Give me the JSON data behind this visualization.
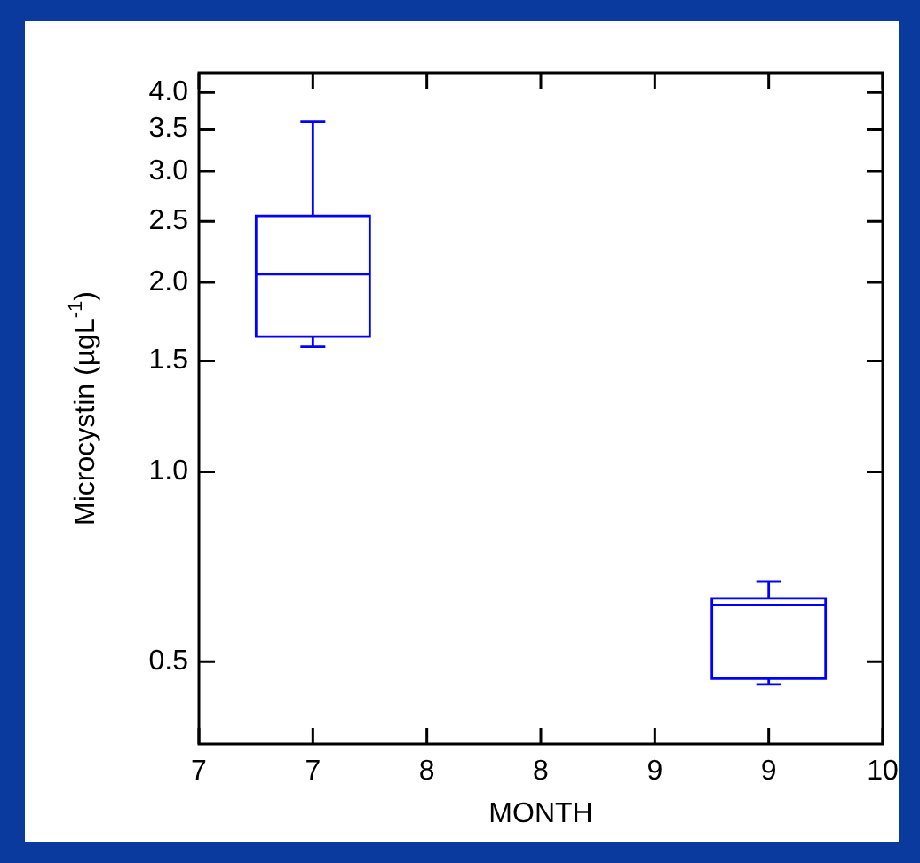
{
  "chart_data": {
    "type": "box",
    "xlabel": "MONTH",
    "ylabel": "Microcystin (µgL$^{-1}$)",
    "x": [
      7,
      9
    ],
    "color": "#0000ff",
    "log": "y",
    "boxes": [
      {
        "low": 1.58,
        "q1": 1.64,
        "median": 2.06,
        "q3": 2.55,
        "high": 3.6
      },
      {
        "low": 0.46,
        "q1": 0.47,
        "median": 0.615,
        "q3": 0.63,
        "high": 0.67
      }
    ],
    "xlim": [
      6.5,
      9.5
    ],
    "xticks": [
      {
        "value": 6.5,
        "label": "7"
      },
      7,
      {
        "value": 7.5,
        "label": "8"
      },
      8,
      {
        "value": 8.5,
        "label": "9"
      },
      9,
      {
        "value": 9.5,
        "label": "10"
      }
    ],
    "ylim": [
      0.37,
      4.3
    ],
    "yticks": [
      0.5,
      {
        "value": 1,
        "label": "1.0"
      },
      1.5,
      {
        "value": 2,
        "label": "2.0"
      },
      2.5,
      {
        "value": 3,
        "label": "3.0"
      },
      3.5,
      {
        "value": 4,
        "label": "4.0"
      }
    ]
  }
}
